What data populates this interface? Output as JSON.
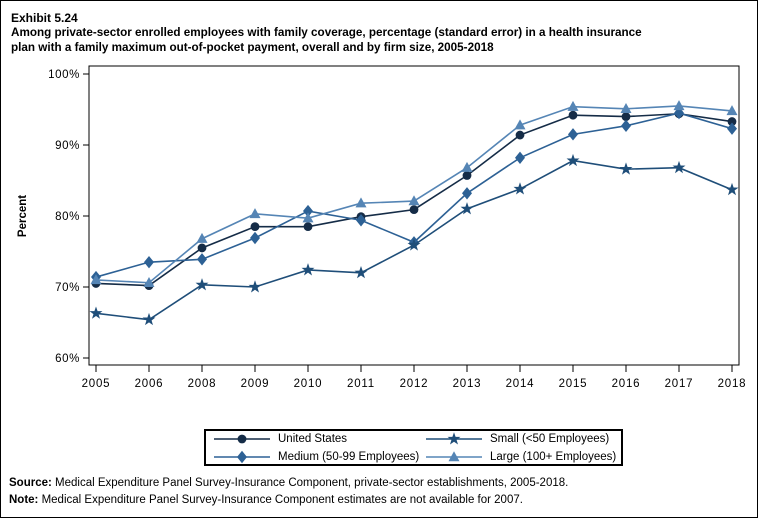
{
  "header": {
    "exhibit_label": "Exhibit 5.24",
    "title_line1": "Among private-sector enrolled employees with family coverage, percentage (standard error) in a health insurance",
    "title_line2": "plan with a family maximum out-of-pocket payment, overall and by firm size, 2005-2018"
  },
  "footer": {
    "source_label": "Source:",
    "source_text": " Medical Expenditure Panel Survey-Insurance Component, private-sector establishments, 2005-2018.",
    "note_label": "Note:",
    "note_text": " Medical Expenditure Panel Survey-Insurance Component estimates are not available for 2007."
  },
  "chart_data": {
    "type": "line",
    "title": "Among private-sector enrolled employees with family coverage, percentage (standard error) in a health insurance plan with a family maximum out-of-pocket payment, overall and by firm size, 2005-2018",
    "xlabel": "",
    "ylabel": "Percent",
    "categories": [
      "2005",
      "2006",
      "2008",
      "2009",
      "2010",
      "2011",
      "2012",
      "2013",
      "2014",
      "2015",
      "2016",
      "2017",
      "2018"
    ],
    "yticks": [
      60,
      70,
      80,
      90,
      100
    ],
    "ytick_labels": [
      "60%",
      "70%",
      "80%",
      "90%",
      "100%"
    ],
    "ylim": [
      59,
      101
    ],
    "grid": false,
    "legend_position": "bottom",
    "note": "2007 estimates not available",
    "series": [
      {
        "name": "United States",
        "marker": "circle",
        "color": "#152c47",
        "values": [
          70.5,
          70.2,
          75.5,
          78.5,
          78.5,
          79.9,
          80.9,
          85.7,
          91.4,
          94.2,
          94.0,
          94.4,
          93.3
        ]
      },
      {
        "name": "Small (<50 Employees)",
        "marker": "star",
        "color": "#1f4e79",
        "values": [
          66.3,
          65.4,
          70.3,
          70.0,
          72.4,
          72.0,
          75.9,
          81.0,
          83.8,
          87.8,
          86.6,
          86.8,
          83.7
        ]
      },
      {
        "name": "Medium (50-99 Employees)",
        "marker": "diamond",
        "color": "#2d6195",
        "values": [
          71.4,
          73.5,
          73.9,
          76.9,
          80.7,
          79.4,
          76.3,
          83.2,
          88.2,
          91.5,
          92.7,
          94.5,
          92.3
        ]
      },
      {
        "name": "Large (100+ Employees)",
        "marker": "triangle",
        "color": "#5585b5",
        "values": [
          71.0,
          70.6,
          76.8,
          80.3,
          79.7,
          81.8,
          82.1,
          86.8,
          92.8,
          95.4,
          95.1,
          95.5,
          94.8
        ]
      }
    ]
  }
}
